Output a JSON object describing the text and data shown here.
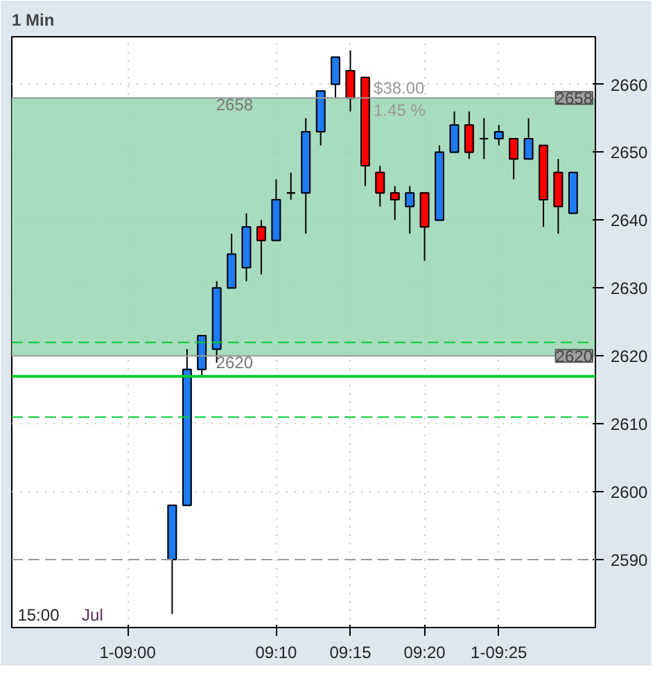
{
  "chart_data": {
    "type": "candlestick",
    "title": "1 Min",
    "x": [
      9.05,
      9.0667,
      9.0833,
      9.1,
      9.1167,
      9.1333,
      9.15,
      9.1667,
      9.1833,
      9.2,
      9.2167,
      9.2333,
      9.25,
      9.2667,
      9.2833,
      9.3,
      9.3167,
      9.3333,
      9.35,
      9.3667,
      9.3833,
      9.4,
      9.4167,
      9.4333,
      9.45,
      9.4667,
      9.4833,
      9.5
    ],
    "ohlc": [
      [
        2590,
        2598,
        2582,
        2598
      ],
      [
        2598,
        2621,
        2598,
        2618
      ],
      [
        2618,
        2623,
        2617,
        2623
      ],
      [
        2621,
        2631,
        2619,
        2630
      ],
      [
        2630,
        2638,
        2630,
        2635
      ],
      [
        2633,
        2641,
        2631,
        2639
      ],
      [
        2639,
        2640,
        2632,
        2637
      ],
      [
        2637,
        2646,
        2637,
        2643
      ],
      [
        2644,
        2647,
        2643,
        2644
      ],
      [
        2644,
        2655,
        2638,
        2653
      ],
      [
        2653,
        2659,
        2651,
        2659
      ],
      [
        2660,
        2664,
        2658,
        2664
      ],
      [
        2662,
        2665,
        2656,
        2658
      ],
      [
        2661,
        2661,
        2645,
        2648
      ],
      [
        2647,
        2648,
        2642,
        2644
      ],
      [
        2644,
        2645,
        2640,
        2643
      ],
      [
        2642,
        2645,
        2638,
        2644
      ],
      [
        2644,
        2644,
        2634,
        2639
      ],
      [
        2640,
        2651,
        2640,
        2650
      ],
      [
        2650,
        2656,
        2650,
        2654
      ],
      [
        2654,
        2656,
        2649,
        2650
      ],
      [
        2652,
        2655,
        2649,
        2652
      ],
      [
        2652,
        2654,
        2651,
        2653
      ],
      [
        2652,
        2652,
        2646,
        2649
      ],
      [
        2649,
        2655,
        2649,
        2652
      ],
      [
        2651,
        2651,
        2639,
        2643
      ],
      [
        2647,
        2649,
        2638,
        2642
      ],
      [
        2641,
        2647,
        2641,
        2647
      ]
    ],
    "colors": [
      "#1e7bf0",
      "#1e7bf0",
      "#1e7bf0",
      "#1e7bf0",
      "#1e7bf0",
      "#1e7bf0",
      "#ff0000",
      "#1e7bf0",
      "#000000",
      "#1e7bf0",
      "#1e7bf0",
      "#1e7bf0",
      "#ff0000",
      "#ff0000",
      "#ff0000",
      "#ff0000",
      "#1e7bf0",
      "#ff0000",
      "#1e7bf0",
      "#1e7bf0",
      "#ff0000",
      "#000000",
      "#1e7bf0",
      "#ff0000",
      "#1e7bf0",
      "#ff0000",
      "#ff0000",
      "#1e7bf0"
    ],
    "xlim": [
      8.87,
      9.525
    ],
    "xticks": [
      {
        "value": 9.0,
        "label": "1-09:00"
      },
      {
        "value": 9.1667,
        "label": "09:10"
      },
      {
        "value": 9.25,
        "label": "09:15"
      },
      {
        "value": 9.3333,
        "label": "09:20"
      },
      {
        "value": 9.4167,
        "label": "1-09:25"
      }
    ],
    "ylim": [
      2580,
      2667
    ],
    "yticks": [
      2590,
      2600,
      2610,
      2620,
      2630,
      2640,
      2650,
      2660
    ],
    "grid": true,
    "ref_lines": [
      {
        "axis": "y",
        "value": 2622,
        "color": "#00cc33",
        "line_style": "dashed"
      },
      {
        "axis": "y",
        "value": 2617,
        "color": "#00cc33",
        "line_style": "solid"
      },
      {
        "axis": "y",
        "value": 2611,
        "color": "#00cc33",
        "line_style": "dashed"
      },
      {
        "axis": "y",
        "value": 2590,
        "color": "#999999",
        "line_style": "dashed"
      },
      {
        "axis": "y",
        "value": 2658,
        "color": "#999999",
        "line_style": "solid",
        "label": "2658"
      },
      {
        "axis": "y",
        "value": 2620,
        "color": "#999999",
        "line_style": "solid",
        "label": "2620"
      }
    ],
    "bands": [
      {
        "axis": "y",
        "from": 2620,
        "to": 2658,
        "color": "#99d6b3"
      }
    ],
    "annotations": [
      "2658",
      "2620",
      "$38.00",
      "1.45 %",
      "Jul",
      "15:00"
    ]
  }
}
